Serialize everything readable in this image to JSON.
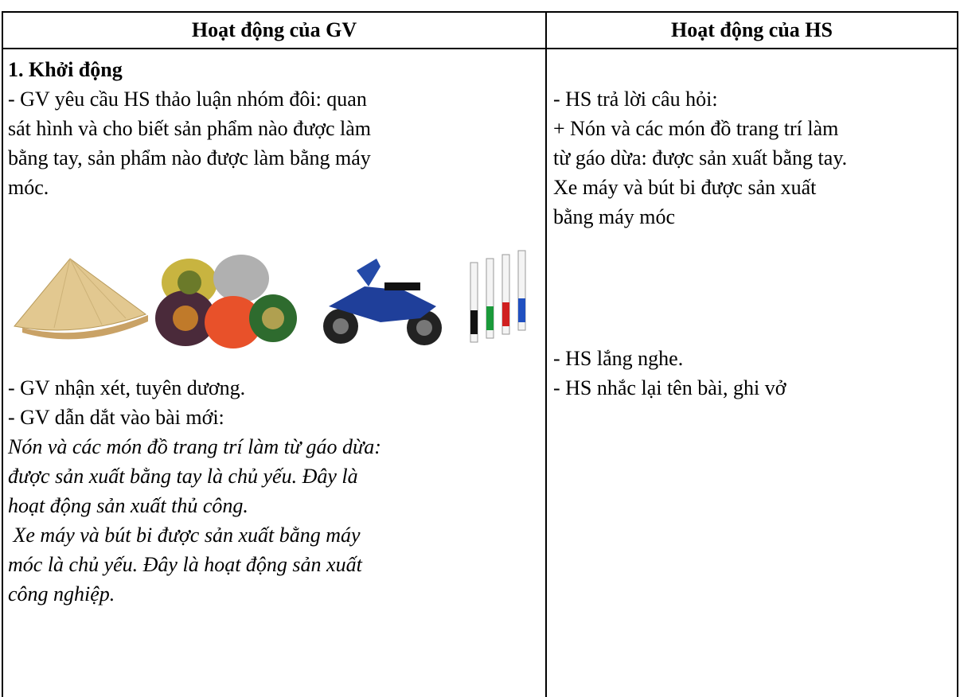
{
  "table": {
    "header": [
      "Hoạt động của GV",
      "Hoạt động của HS"
    ],
    "left": {
      "heading": "1. Khởi động",
      "lines_before": [
        "- GV yêu cầu HS thảo luận nhóm đôi: quan",
        "sát hình và cho biết sản phẩm nào được làm",
        "bằng tay, sản phẩm nào được làm bằng máy",
        "móc."
      ],
      "lines_after": [
        "- GV nhận xét, tuyên dương.",
        "- GV dẫn dắt vào bài mới:"
      ],
      "italic_lines": [
        "Nón và các món đồ trang trí làm từ gáo dừa:",
        "được sản xuất bằng tay là chủ yếu. Đây là",
        "hoạt động sản xuất thủ công.",
        " Xe máy và bút bi được sản xuất bằng máy",
        "móc là chủ yếu. Đây là hoạt động sản xuất",
        "công nghiệp."
      ]
    },
    "right": {
      "lines_top": [
        "- HS trả lời câu hỏi:",
        "+ Nón và các món đồ trang trí làm",
        "từ gáo dừa: được sản xuất bằng tay.",
        "Xe máy và bút bi được sản xuất",
        "bằng máy móc"
      ],
      "lines_bottom": [
        "- HS lắng nghe.",
        "- HS nhắc lại tên bài, ghi vở"
      ]
    }
  }
}
